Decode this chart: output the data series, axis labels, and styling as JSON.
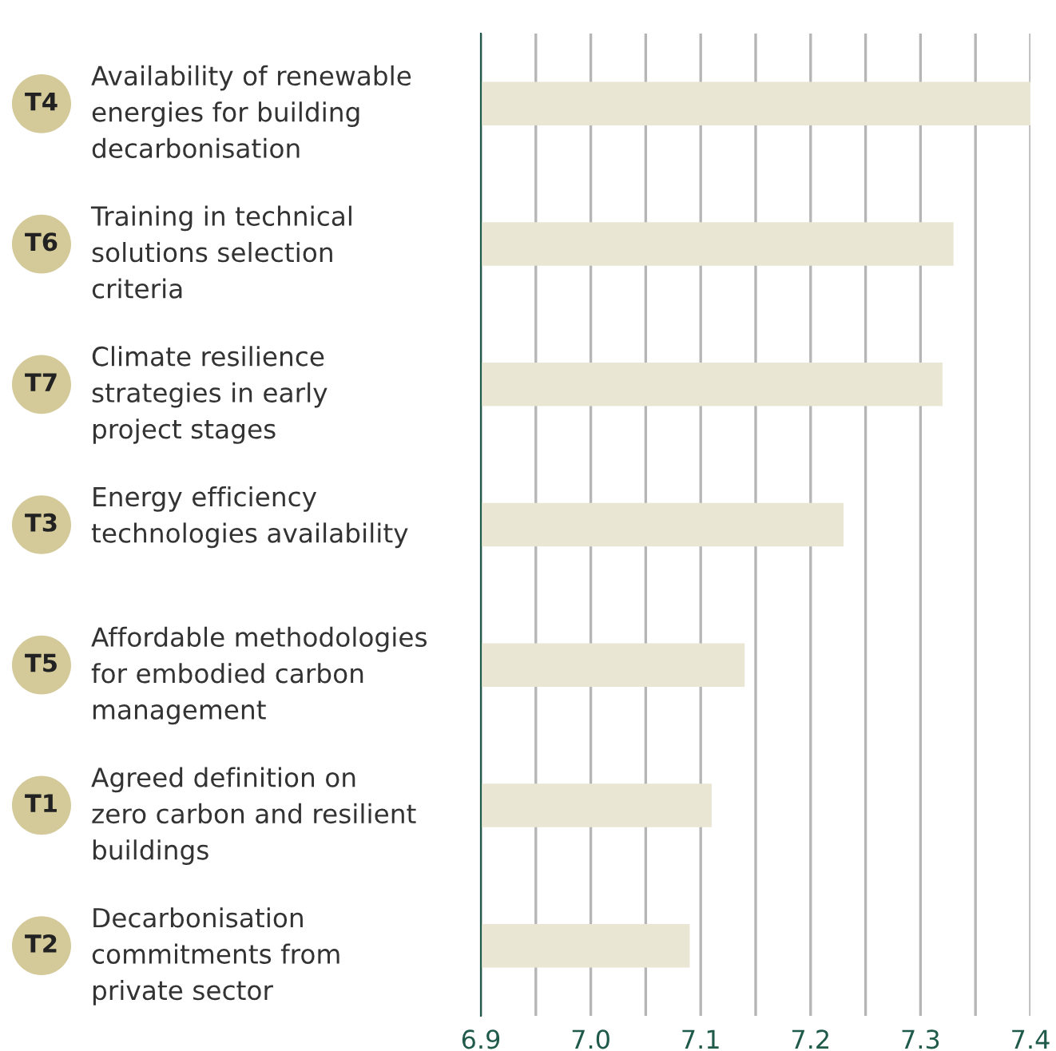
{
  "chart_data": {
    "type": "bar",
    "orientation": "horizontal",
    "categories": [
      "T4 Availability of renewable\nenergies for building\ndecarbonisation",
      "T6 Training in technical\nsolutions selection\ncriteria",
      "T7 Climate resilience\nstrategies in early\nproject stages",
      "T3 Energy efficiency\ntechnologies availability",
      "T5 Affordable methodologies\nfor embodied carbon\nmanagement",
      "T1 Agreed definition on\nzero carbon and resilient\nbuildings",
      "T2 Decarbonisation\ncommitments from\nprivate sector"
    ],
    "values": [
      7.4,
      7.33,
      7.32,
      7.23,
      7.14,
      7.11,
      7.09
    ],
    "color": "#e9e6d4",
    "xlim": [
      6.9,
      7.4
    ],
    "xticks": [
      6.9,
      {
        "value": 6.95,
        "label": null
      },
      {
        "value": 7.0,
        "label": "7.0"
      },
      {
        "value": 7.05,
        "label": null
      },
      7.1,
      {
        "value": 7.15,
        "label": null
      },
      7.2,
      {
        "value": 7.25,
        "label": null
      },
      7.3,
      {
        "value": 7.35,
        "label": null
      },
      7.4
    ],
    "grid": "x"
  }
}
